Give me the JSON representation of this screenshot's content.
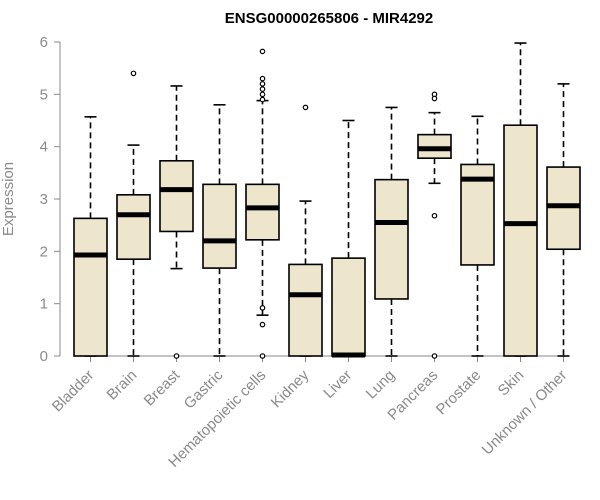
{
  "chart_data": {
    "type": "boxplot",
    "title": "ENSG00000265806 - MIR4292",
    "ylabel": "Expression",
    "xlabel": "",
    "ylim": [
      0,
      6
    ],
    "yticks": [
      0,
      1,
      2,
      3,
      4,
      5,
      6
    ],
    "categories": [
      "Bladder",
      "Brain",
      "Breast",
      "Gastric",
      "Hematopoietic cells",
      "Kidney",
      "Liver",
      "Lung",
      "Pancreas",
      "Prostate",
      "Skin",
      "Unknown / Other"
    ],
    "boxes": [
      {
        "label": "Bladder",
        "whisker_low": 0,
        "q1": 0,
        "median": 1.93,
        "q3": 2.63,
        "whisker_high": 4.57,
        "outliers": []
      },
      {
        "label": "Brain",
        "whisker_low": 0,
        "q1": 1.85,
        "median": 2.7,
        "q3": 3.08,
        "whisker_high": 4.03,
        "outliers": [
          5.4
        ]
      },
      {
        "label": "Breast",
        "whisker_low": 1.67,
        "q1": 2.38,
        "median": 3.18,
        "q3": 3.73,
        "whisker_high": 5.16,
        "outliers": [
          0
        ]
      },
      {
        "label": "Gastric",
        "whisker_low": 0,
        "q1": 1.68,
        "median": 2.2,
        "q3": 3.28,
        "whisker_high": 4.8,
        "outliers": []
      },
      {
        "label": "Hematopoietic cells",
        "whisker_low": 0.78,
        "q1": 2.22,
        "median": 2.83,
        "q3": 3.28,
        "whisker_high": 4.88,
        "outliers": [
          5.82,
          5.3,
          5.2,
          5.1,
          5.0,
          4.9,
          0.92,
          0.6,
          0
        ]
      },
      {
        "label": "Kidney",
        "whisker_low": 0,
        "q1": 0,
        "median": 1.17,
        "q3": 1.75,
        "whisker_high": 2.96,
        "outliers": [
          4.75
        ]
      },
      {
        "label": "Liver",
        "whisker_low": 0,
        "q1": 0,
        "median": 0.02,
        "q3": 1.87,
        "whisker_high": 4.5,
        "outliers": []
      },
      {
        "label": "Lung",
        "whisker_low": 0,
        "q1": 1.09,
        "median": 2.55,
        "q3": 3.37,
        "whisker_high": 4.75,
        "outliers": []
      },
      {
        "label": "Pancreas",
        "whisker_low": 3.3,
        "q1": 3.78,
        "median": 3.96,
        "q3": 4.23,
        "whisker_high": 4.65,
        "outliers": [
          5.0,
          4.92,
          2.68,
          0
        ]
      },
      {
        "label": "Prostate",
        "whisker_low": 0,
        "q1": 1.74,
        "median": 3.38,
        "q3": 3.66,
        "whisker_high": 4.58,
        "outliers": []
      },
      {
        "label": "Skin",
        "whisker_low": 0,
        "q1": 0,
        "median": 2.53,
        "q3": 4.41,
        "whisker_high": 5.98,
        "outliers": []
      },
      {
        "label": "Unknown / Other",
        "whisker_low": 0,
        "q1": 2.04,
        "median": 2.87,
        "q3": 3.61,
        "whisker_high": 5.2,
        "outliers": []
      }
    ],
    "colors": {
      "box_fill": "#ede6cc",
      "box_stroke": "#000000",
      "axis": "#8a8a8a"
    }
  }
}
